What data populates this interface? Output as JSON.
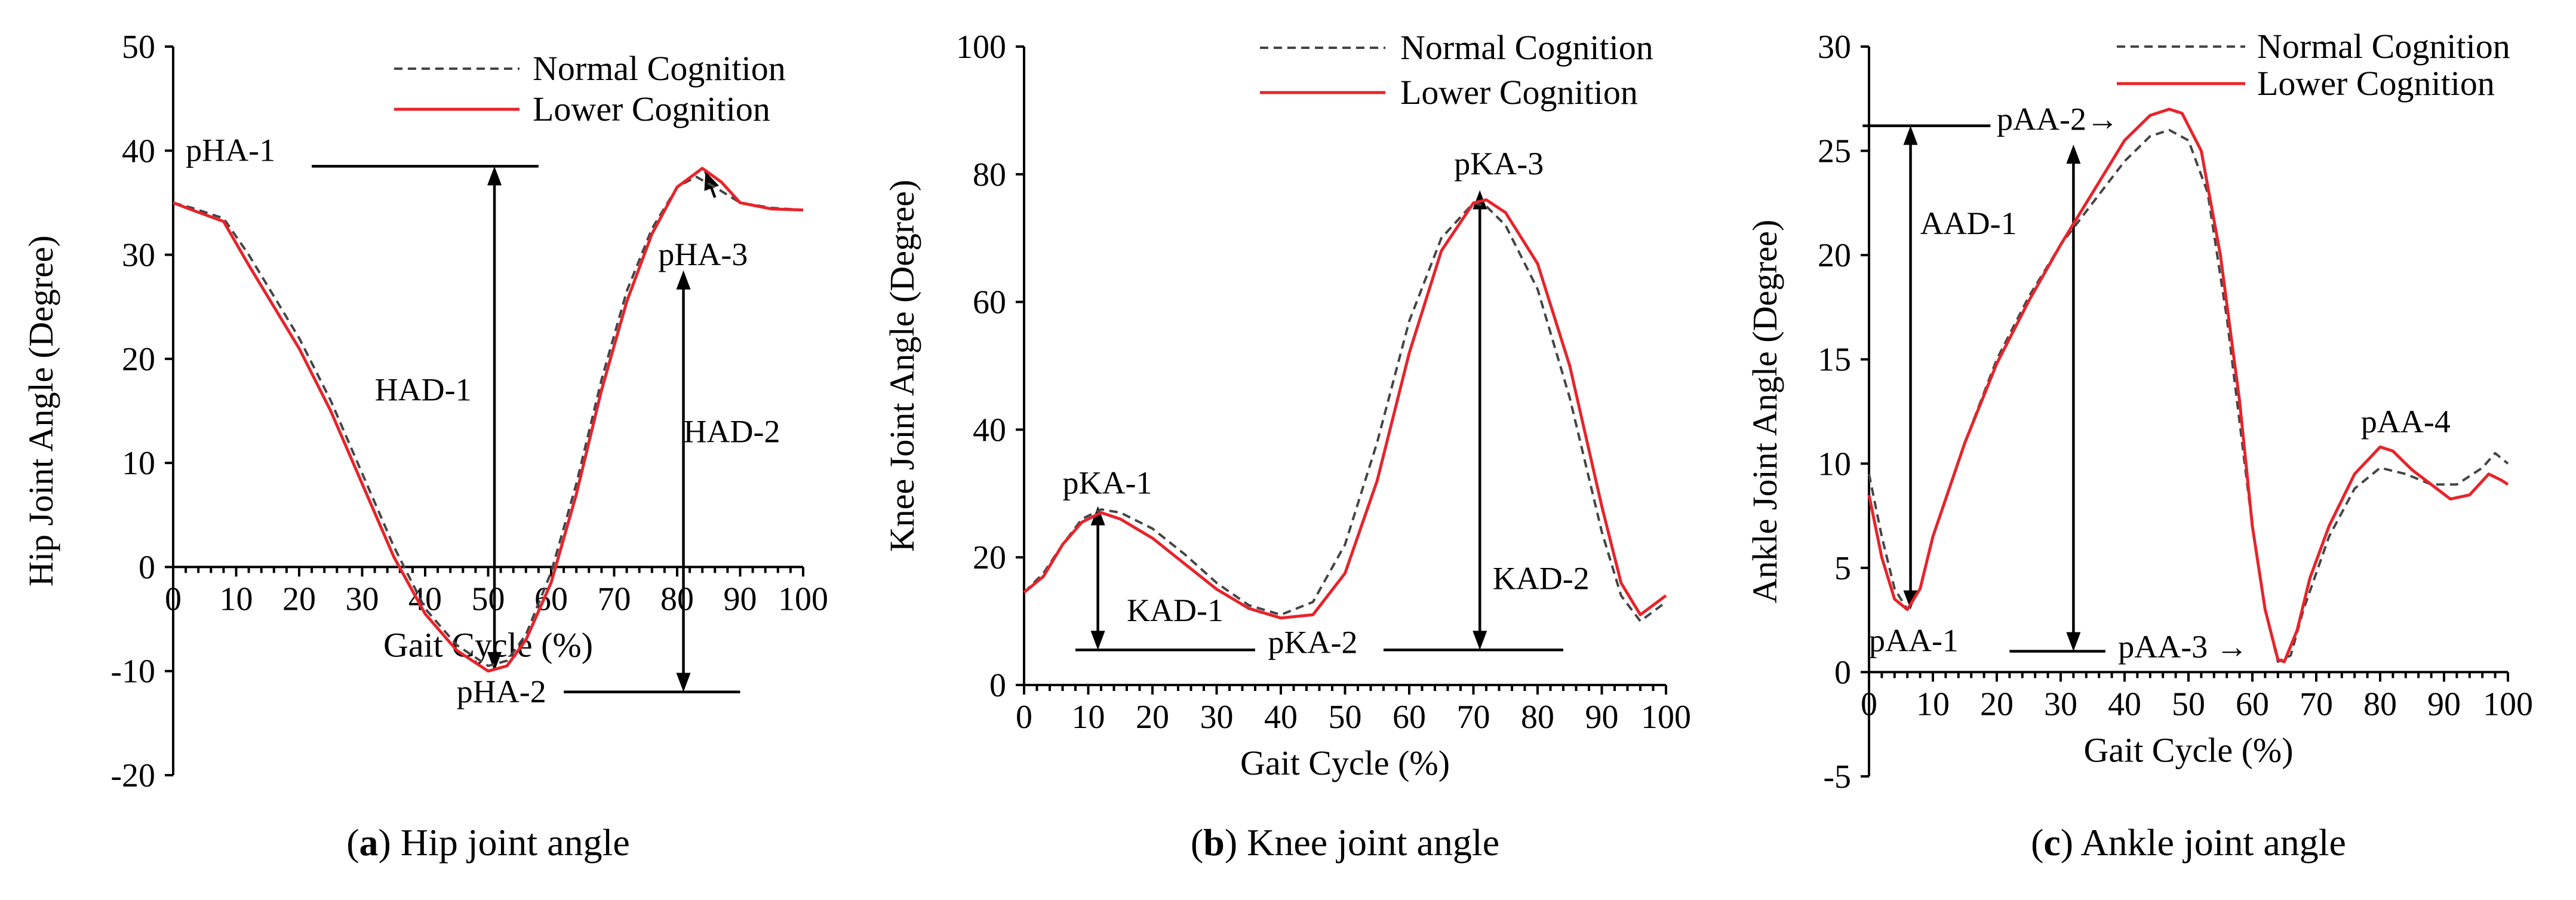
{
  "chart_data": [
    {
      "type": "line",
      "id": "hip",
      "caption": {
        "letter": "a",
        "text": " Hip joint angle"
      },
      "xlabel": "Gait Cycle (%)",
      "ylabel": "Hip Joint Angle (Degree)",
      "xlim": [
        0,
        100
      ],
      "ylim": [
        -20,
        50
      ],
      "xticks": [
        0,
        10,
        20,
        30,
        40,
        50,
        60,
        70,
        80,
        90,
        100
      ],
      "yticks": [
        -20,
        -10,
        0,
        10,
        20,
        30,
        40,
        50
      ],
      "grid": false,
      "legend": "top-right",
      "series": [
        {
          "name": "Normal Cognition",
          "color": "#444444",
          "dash": true,
          "x": [
            0,
            3,
            8,
            12,
            16,
            20,
            25,
            30,
            35,
            40,
            45,
            50,
            53,
            56,
            60,
            64,
            68,
            72,
            76,
            80,
            83,
            86,
            90,
            95,
            100
          ],
          "y": [
            35.0,
            34.5,
            33.5,
            30.0,
            26.0,
            22.0,
            16.0,
            9.0,
            2.0,
            -4.0,
            -7.5,
            -9.5,
            -9.0,
            -6.5,
            -0.5,
            8.0,
            18.0,
            26.5,
            32.5,
            36.5,
            37.5,
            36.5,
            35.0,
            34.5,
            34.3
          ]
        },
        {
          "name": "Lower Cognition",
          "color": "#e8232a",
          "dash": false,
          "x": [
            0,
            3,
            8,
            12,
            16,
            20,
            25,
            30,
            35,
            40,
            45,
            50,
            53,
            56,
            60,
            64,
            68,
            72,
            76,
            80,
            84,
            87,
            90,
            95,
            100
          ],
          "y": [
            35.0,
            34.3,
            33.2,
            29.0,
            25.0,
            21.0,
            15.0,
            8.0,
            1.0,
            -4.5,
            -8.0,
            -10.0,
            -9.5,
            -7.0,
            -1.5,
            7.0,
            17.0,
            25.5,
            32.0,
            36.5,
            38.3,
            37.0,
            35.0,
            34.4,
            34.3
          ]
        }
      ],
      "annotations": [
        {
          "text": "pHA-1",
          "x": 2,
          "y": 39
        },
        {
          "text": "pHA-2",
          "x": 45,
          "y": -13
        },
        {
          "text": "pHA-3",
          "x": 77,
          "y": 29
        },
        {
          "text": "HAD-1",
          "x": 32,
          "y": 16
        },
        {
          "text": "HAD-2",
          "x": 81,
          "y": 12
        }
      ],
      "reference_lines": [
        {
          "y": 38.5,
          "x1": 22,
          "x2": 58
        },
        {
          "y": -12,
          "x1": 62,
          "x2": 90
        }
      ],
      "arrows": [
        {
          "x": 51,
          "y1": 38.5,
          "y2": -10
        },
        {
          "x": 81,
          "y1": 28.5,
          "y2": -12
        },
        {
          "x1": 86,
          "y1": 35.5,
          "x2": 84.5,
          "y2": 38,
          "type": "single"
        }
      ]
    },
    {
      "type": "line",
      "id": "knee",
      "caption": {
        "letter": "b",
        "text": " Knee joint angle"
      },
      "xlabel": "Gait Cycle (%)",
      "ylabel": "Knee Joint Angle (Degree)",
      "xlim": [
        0,
        100
      ],
      "ylim": [
        0,
        100
      ],
      "xticks": [
        0,
        10,
        20,
        30,
        40,
        50,
        60,
        70,
        80,
        90,
        100
      ],
      "yticks": [
        0,
        20,
        40,
        60,
        80,
        100
      ],
      "grid": false,
      "legend": "top-right",
      "series": [
        {
          "name": "Normal Cognition",
          "color": "#444444",
          "dash": true,
          "x": [
            0,
            3,
            6,
            9,
            12,
            15,
            20,
            25,
            30,
            35,
            40,
            45,
            50,
            55,
            60,
            65,
            70,
            72,
            75,
            80,
            85,
            90,
            93,
            96,
            100
          ],
          "y": [
            14.5,
            17.5,
            22.0,
            26.0,
            27.5,
            27.0,
            24.5,
            20.5,
            16.0,
            12.5,
            11.0,
            13.0,
            22.0,
            38.0,
            57.0,
            70.0,
            75.5,
            75.0,
            72.0,
            62.0,
            45.0,
            24.0,
            14.0,
            10.0,
            13.0
          ]
        },
        {
          "name": "Lower Cognition",
          "color": "#e8232a",
          "dash": false,
          "x": [
            0,
            3,
            6,
            9,
            12,
            15,
            20,
            25,
            30,
            35,
            40,
            45,
            50,
            55,
            60,
            65,
            70,
            72,
            75,
            80,
            85,
            90,
            93,
            96,
            100
          ],
          "y": [
            14.5,
            17.0,
            22.0,
            25.5,
            27.0,
            26.0,
            23.0,
            19.0,
            15.0,
            12.0,
            10.5,
            11.0,
            17.5,
            32.0,
            52.0,
            68.0,
            75.5,
            76.0,
            74.0,
            66.0,
            50.0,
            28.0,
            16.0,
            11.0,
            14.0
          ]
        }
      ],
      "annotations": [
        {
          "text": "pKA-1",
          "x": 6,
          "y": 30
        },
        {
          "text": "KAD-1",
          "x": 16,
          "y": 10
        },
        {
          "text": "pKA-2",
          "x": 38,
          "y": 5
        },
        {
          "text": "pKA-3",
          "x": 67,
          "y": 80
        },
        {
          "text": "KAD-2",
          "x": 73,
          "y": 15
        }
      ],
      "reference_lines": [
        {
          "y": 5.5,
          "x1": 8,
          "x2": 36
        },
        {
          "y": 5.5,
          "x1": 56,
          "x2": 84
        }
      ],
      "arrows": [
        {
          "x": 11.5,
          "y1": 28,
          "y2": 5.5
        },
        {
          "x": 71,
          "y1": 77.5,
          "y2": 5.5
        }
      ]
    },
    {
      "type": "line",
      "id": "ankle",
      "caption": {
        "letter": "c",
        "text": " Ankle joint angle"
      },
      "xlabel": "Gait Cycle (%)",
      "ylabel": "Ankle Joint Angle (Degree)",
      "xlim": [
        0,
        100
      ],
      "ylim": [
        -5,
        30
      ],
      "xticks": [
        0,
        10,
        20,
        30,
        40,
        50,
        60,
        70,
        80,
        90,
        100
      ],
      "yticks": [
        -5,
        0,
        5,
        10,
        15,
        20,
        25,
        30
      ],
      "grid": false,
      "legend": "top-right",
      "series": [
        {
          "name": "Normal Cognition",
          "color": "#444444",
          "dash": true,
          "x": [
            0,
            2,
            4,
            6,
            8,
            10,
            15,
            20,
            25,
            30,
            35,
            40,
            44,
            47,
            50,
            53,
            56,
            58,
            60,
            62,
            64,
            66,
            68,
            72,
            76,
            80,
            84,
            88,
            92,
            96,
            98,
            100
          ],
          "y": [
            9.5,
            6.5,
            4.0,
            3.0,
            4.0,
            6.5,
            11.0,
            15.0,
            18.0,
            20.5,
            22.5,
            24.5,
            25.7,
            26.0,
            25.5,
            23.0,
            17.0,
            12.0,
            7.0,
            3.0,
            0.5,
            0.8,
            3.0,
            6.5,
            8.8,
            9.8,
            9.5,
            9.0,
            9.0,
            9.8,
            10.5,
            10.0
          ]
        },
        {
          "name": "Lower Cognition",
          "color": "#e8232a",
          "dash": false,
          "x": [
            0,
            2,
            4,
            6,
            8,
            10,
            15,
            20,
            25,
            30,
            35,
            40,
            44,
            47,
            49,
            52,
            55,
            58,
            60,
            62,
            64,
            65,
            67,
            69,
            72,
            76,
            80,
            82,
            85,
            88,
            91,
            94,
            97,
            99,
            100
          ],
          "y": [
            8.5,
            5.5,
            3.5,
            3.0,
            4.0,
            6.5,
            11.0,
            14.8,
            17.8,
            20.5,
            23.0,
            25.5,
            26.7,
            27.0,
            26.8,
            25.0,
            20.0,
            13.0,
            7.0,
            3.0,
            0.6,
            0.5,
            2.0,
            4.5,
            7.0,
            9.5,
            10.8,
            10.6,
            9.7,
            9.0,
            8.3,
            8.5,
            9.5,
            9.2,
            9.0
          ]
        }
      ],
      "annotations": [
        {
          "text": "pAA-1",
          "x": 0,
          "y": 1
        },
        {
          "text": "AAD-1",
          "x": 8,
          "y": 21
        },
        {
          "text": "pAA-2→",
          "x": 20,
          "y": 26
        },
        {
          "text": "pAA-3 →",
          "x": 39,
          "y": 0.7
        },
        {
          "text": "pAA-4",
          "x": 77,
          "y": 11.5
        }
      ],
      "reference_lines": [
        {
          "y": 26.2,
          "x1": -1,
          "x2": 19
        },
        {
          "y": 1.0,
          "x1": 22,
          "x2": 37
        }
      ],
      "arrows": [
        {
          "x": 6.5,
          "y1": 26.2,
          "y2": 3.0
        },
        {
          "x": 32,
          "y1": 25.3,
          "y2": 1.0
        }
      ]
    }
  ]
}
